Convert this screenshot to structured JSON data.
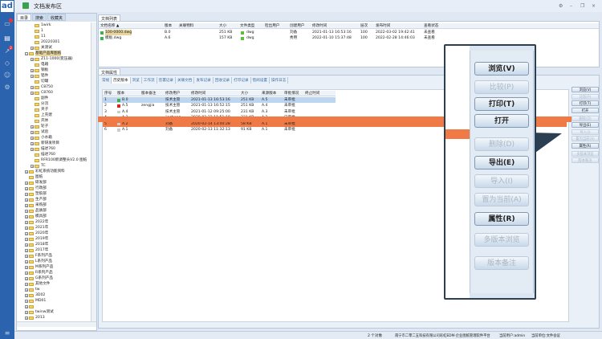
{
  "app": {
    "logo": "ad",
    "title": "文档发布区",
    "badges": [
      "",
      "2"
    ],
    "window_controls": [
      "⚙",
      "–",
      "❐",
      "×"
    ]
  },
  "tree": {
    "tabs": [
      "目录",
      "搜索",
      "收藏夹"
    ],
    "items": [
      {
        "l": 3,
        "t": "1wirk",
        "e": 0
      },
      {
        "l": 3,
        "t": "1",
        "e": 0
      },
      {
        "l": 3,
        "t": "11",
        "e": 0
      },
      {
        "l": 3,
        "t": "20220301",
        "e": 0
      },
      {
        "l": 3,
        "t": "关测试",
        "e": 1
      },
      {
        "l": 2,
        "t": "基础产品库图纸",
        "e": 2,
        "sel": true
      },
      {
        "l": 3,
        "t": "Z11-1000(变压器)",
        "e": 1
      },
      {
        "l": 3,
        "t": "电箱",
        "e": 0
      },
      {
        "l": 3,
        "t": "钢板",
        "e": 1
      },
      {
        "l": 3,
        "t": "铝件",
        "e": 1
      },
      {
        "l": 3,
        "t": "切罐",
        "e": 0
      },
      {
        "l": 3,
        "t": "C8750",
        "e": 1
      },
      {
        "l": 3,
        "t": "C8760",
        "e": 1
      },
      {
        "l": 3,
        "t": "副件",
        "e": 0
      },
      {
        "l": 3,
        "t": "分流",
        "e": 0
      },
      {
        "l": 3,
        "t": "夹子",
        "e": 0
      },
      {
        "l": 3,
        "t": "上壳建",
        "e": 0
      },
      {
        "l": 3,
        "t": "壳体",
        "e": 0
      },
      {
        "l": 3,
        "t": "轮子",
        "e": 1
      },
      {
        "l": 3,
        "t": "试验",
        "e": 1
      },
      {
        "l": 3,
        "t": "小水箱",
        "e": 1
      },
      {
        "l": 3,
        "t": "新研发项目",
        "e": 1
      },
      {
        "l": 3,
        "t": "描述760",
        "e": 1
      },
      {
        "l": 3,
        "t": "描述760",
        "e": 0
      },
      {
        "l": 3,
        "t": "RFR100新调整头V2.0 图纸",
        "e": 0
      },
      {
        "l": 3,
        "t": "TC",
        "e": 1
      },
      {
        "l": 2,
        "t": "彩虹系统功能资料",
        "e": 1
      },
      {
        "l": 2,
        "t": "图纸",
        "e": 0
      },
      {
        "l": 2,
        "t": "研发部",
        "e": 1
      },
      {
        "l": 2,
        "t": "行政部",
        "e": 1
      },
      {
        "l": 2,
        "t": "塑胶部",
        "e": 1
      },
      {
        "l": 2,
        "t": "生产部",
        "e": 1
      },
      {
        "l": 2,
        "t": "采购部",
        "e": 1
      },
      {
        "l": 2,
        "t": "品质部",
        "e": 1
      },
      {
        "l": 2,
        "t": "模具部",
        "e": 1
      },
      {
        "l": 2,
        "t": "2022年",
        "e": 1
      },
      {
        "l": 2,
        "t": "2021年",
        "e": 1
      },
      {
        "l": 2,
        "t": "2020年",
        "e": 1
      },
      {
        "l": 2,
        "t": "2019年",
        "e": 1
      },
      {
        "l": 2,
        "t": "2018年",
        "e": 1
      },
      {
        "l": 2,
        "t": "2017年",
        "e": 1
      },
      {
        "l": 2,
        "t": "F系列产品",
        "e": 1
      },
      {
        "l": 2,
        "t": "L系列产品",
        "e": 1
      },
      {
        "l": 2,
        "t": "M系列产品",
        "e": 1
      },
      {
        "l": 2,
        "t": "R系列产品",
        "e": 1
      },
      {
        "l": 2,
        "t": "G系列产品",
        "e": 1
      },
      {
        "l": 2,
        "t": "其他文件",
        "e": 1
      },
      {
        "l": 2,
        "t": "tw",
        "e": 1
      },
      {
        "l": 2,
        "t": "3D02",
        "e": 1
      },
      {
        "l": 2,
        "t": "MD01",
        "e": 1
      },
      {
        "l": 2,
        "t": "",
        "e": 1
      },
      {
        "l": 2,
        "t": "twinw测试",
        "e": 1
      },
      {
        "l": 2,
        "t": "2013",
        "e": 1
      }
    ]
  },
  "doc_list": {
    "tab": "文档列表",
    "columns": [
      "文档名称 ▲",
      "版本",
      "关联物料",
      "大小",
      "文件类型",
      "检出用户",
      "创建用户",
      "修改时间",
      "层次",
      "发布时间",
      "查看状态"
    ],
    "rows": [
      [
        "100-0000.dwg",
        "B.0",
        "",
        "251 KB",
        "dwg",
        "",
        "刘备",
        "2021-01-13 16:53:16",
        "100",
        "2022-03-02 19:42:41",
        "未查看"
      ],
      [
        "模板.dwg",
        "A.6",
        "",
        "157 KB",
        "dwg",
        "",
        "秀用",
        "2022-01-10 15:37:48",
        "100",
        "2022-02-28 14:46:03",
        "未查看"
      ]
    ]
  },
  "props": {
    "tab": "文档属性",
    "subtabs": [
      "常规",
      "历史版本",
      "浏览",
      "工作流",
      "签署记录",
      "关联文档",
      "发布记录",
      "回收记录",
      "打印记录",
      "借阅设置",
      "操作日志"
    ],
    "active_subtab": 1,
    "columns": [
      "序号",
      "版本",
      "版本备注",
      "修改用户",
      "修改时间",
      "大小",
      "来源版本",
      "审批情况",
      "终止时间"
    ],
    "rows": [
      [
        "1",
        "B.0",
        "",
        "技术主管",
        "2021-01-13 16:53:16",
        "251 KB",
        "A.5",
        "未审批",
        ""
      ],
      [
        "2",
        "A.5",
        "zengjia",
        "技术主管",
        "2021-01-13 16:52:15",
        "251 KB",
        "A.4",
        "未审批",
        ""
      ],
      [
        "3",
        "A.4",
        "",
        "技术主管",
        "2021-01-12 09:25:00",
        "231 KB",
        "A.3",
        "未审批",
        ""
      ],
      [
        "4",
        "A.3",
        "",
        "jiazheng",
        "2020-02-22 11:51:19",
        "231 KB",
        "A.2",
        "已审批",
        ""
      ],
      [
        "5",
        "A.2",
        "",
        "刘备",
        "2020-02-14 13:40:28",
        "58 KB",
        "A.1",
        "未审批",
        ""
      ],
      [
        "6",
        "A.1",
        "",
        "刘备",
        "2020-02-13 11:32:13",
        "91 KB",
        "A.1",
        "未审批",
        ""
      ]
    ],
    "selected_row": 0,
    "highlighted_row": 4
  },
  "buttons": [
    {
      "t": "浏览(V)",
      "on": true
    },
    {
      "t": "比较(P)",
      "on": false
    },
    {
      "t": "打印(T)",
      "on": true
    },
    {
      "t": "打开",
      "on": true
    },
    {
      "t": "删除(D)",
      "on": false
    },
    {
      "t": "导出(E)",
      "on": true
    },
    {
      "t": "导入(I)",
      "on": false
    },
    {
      "t": "置为当前(A)",
      "on": false
    },
    {
      "t": "属性(R)",
      "on": true
    },
    {
      "t": "多版本浏览",
      "on": false
    },
    {
      "t": "版本备注",
      "on": false
    }
  ],
  "status": {
    "count": "2 个对象",
    "company": "南宁市二零二五科技有限公司彩虹EDM-企业图纸管理软件平台",
    "user": "当前用户:admin",
    "unit": "当前单位:文件会议"
  },
  "colors": {
    "sidebar": "#2b63ae",
    "highlight": "#ef7a45",
    "selected": "#bcd6f2"
  }
}
